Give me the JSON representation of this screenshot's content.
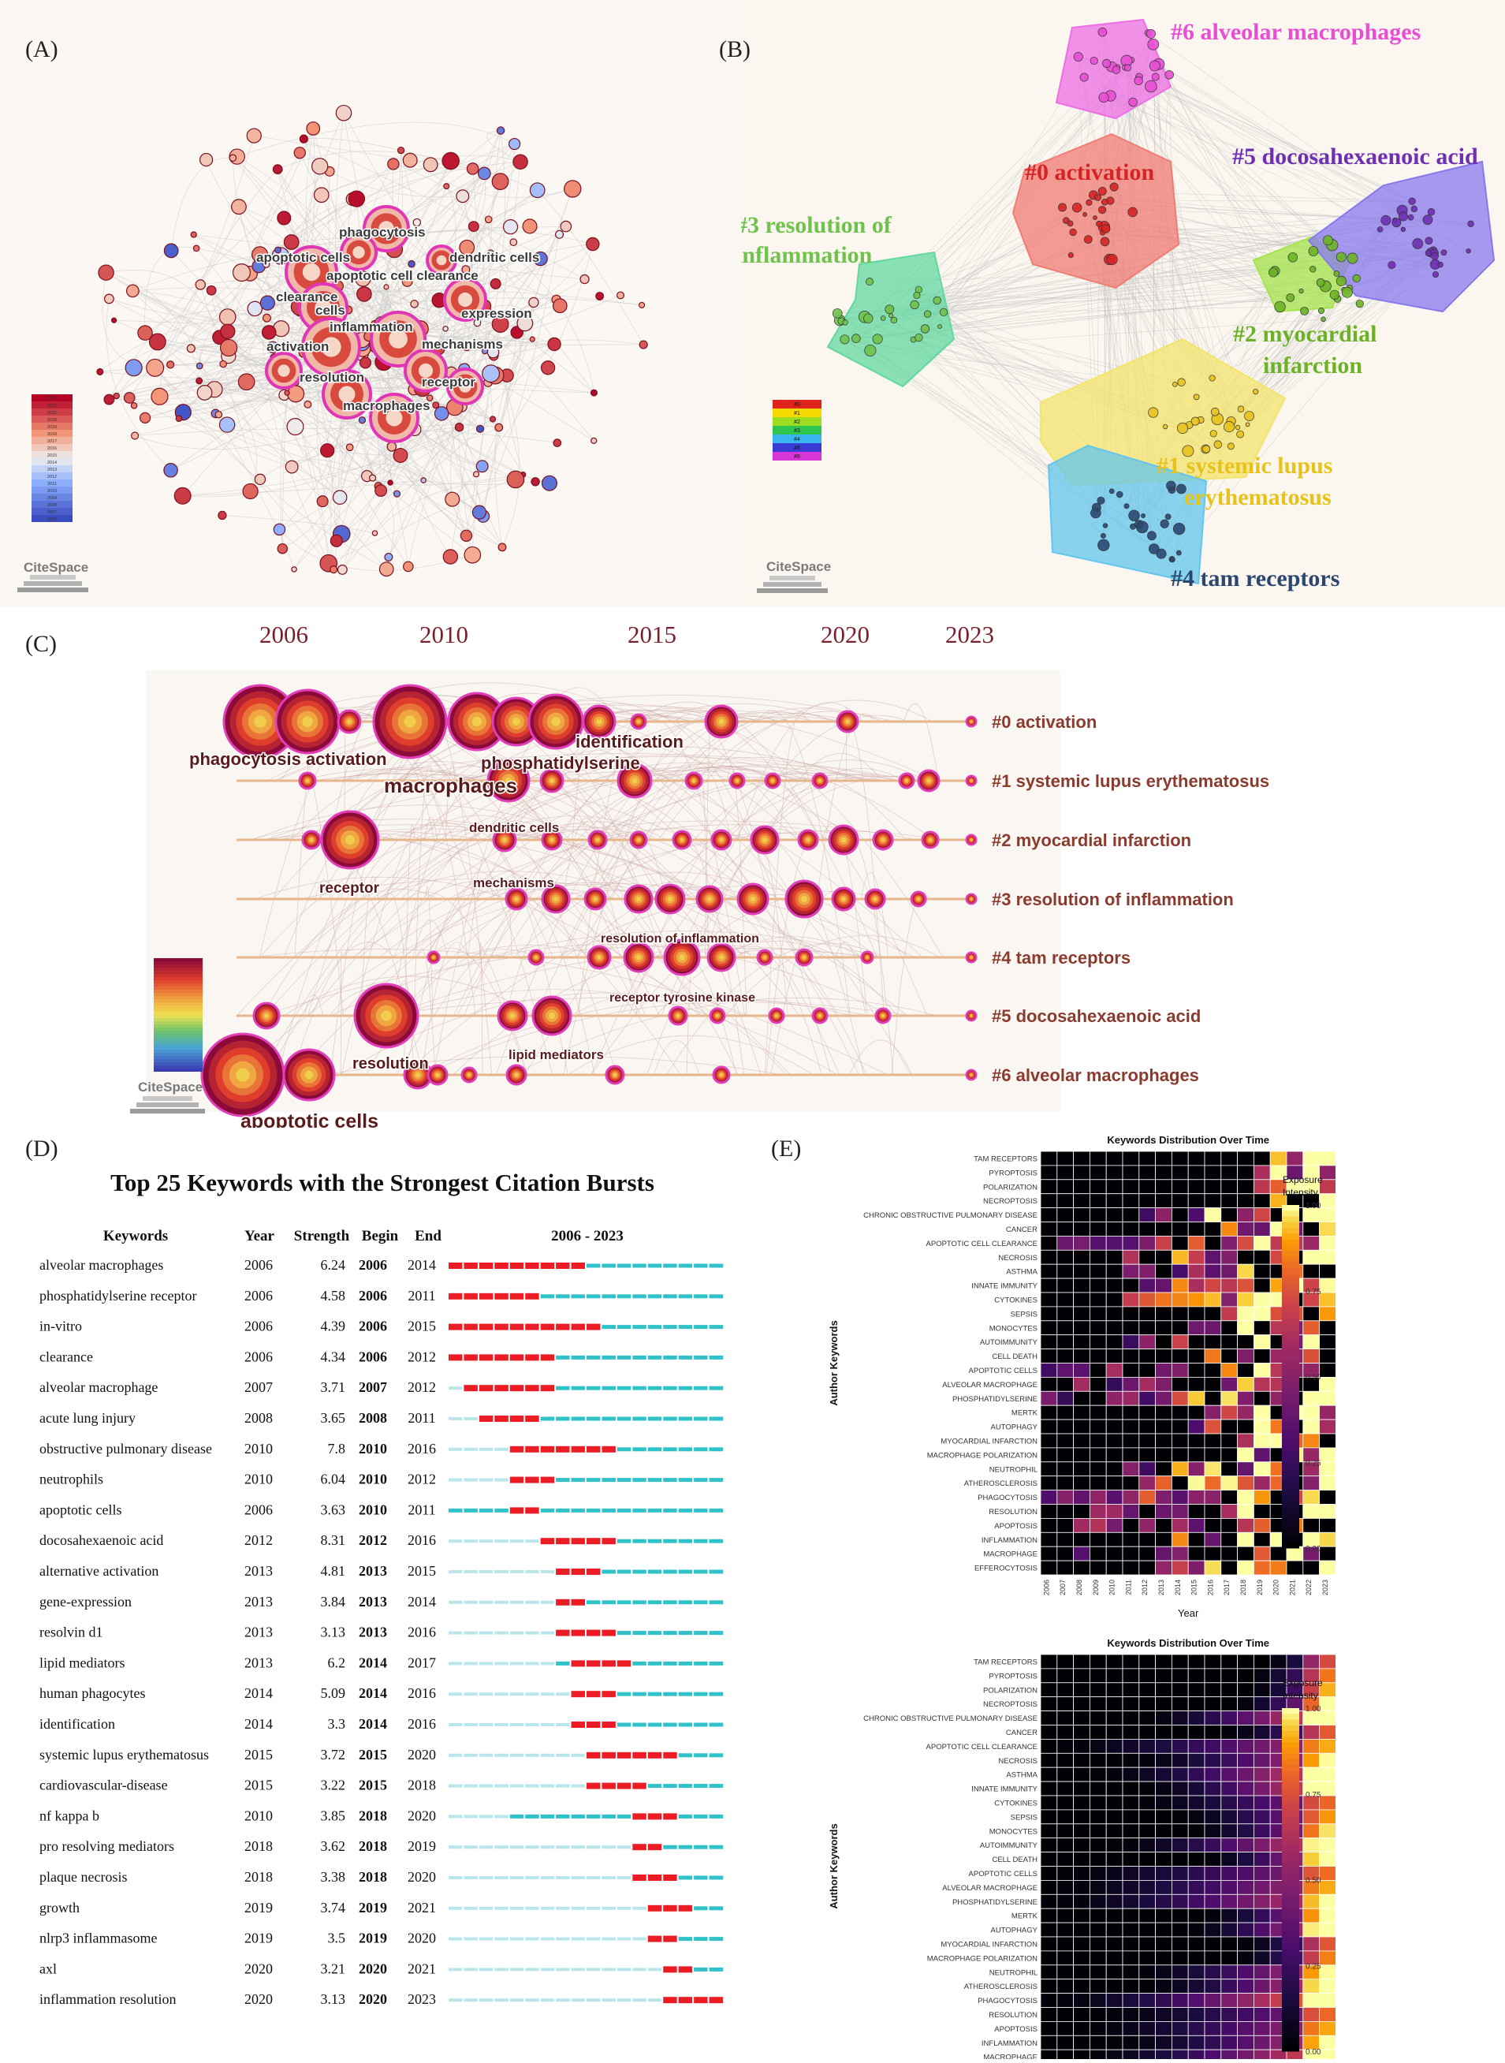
{
  "panel_labels": {
    "A": "(A)",
    "B": "(B)",
    "C": "(C)",
    "D": "(D)",
    "E": "(E)"
  },
  "logo_text": "CiteSpace",
  "chart_data": [
    {
      "id": "A",
      "type": "network",
      "node_labels": [
        "phagocytosis",
        "apoptotic cells",
        "dendritic cells",
        "apoptotic cell clearance",
        "clearance cells",
        "inflammation",
        "expression",
        "activation",
        "mechanisms",
        "resolution",
        "receptor",
        "macrophages"
      ],
      "legend_years": [
        "2023",
        "2022",
        "2021",
        "2020",
        "2019",
        "2018",
        "2017",
        "2016",
        "2015",
        "2014",
        "2013",
        "2012",
        "2011",
        "2010",
        "2009",
        "2008",
        "2007",
        "2006"
      ]
    },
    {
      "id": "B",
      "type": "cluster-network",
      "clusters": [
        {
          "id": "#0",
          "label": "#0 activation",
          "color": "#d62424"
        },
        {
          "id": "#1",
          "label": "#1 systemic lupus erythematosus",
          "color": "#e8c21c"
        },
        {
          "id": "#2",
          "label": "#2 myocardial infarction",
          "color": "#6cb226"
        },
        {
          "id": "#3",
          "label": "#3 resolution of inflammation",
          "color": "#6fc24b"
        },
        {
          "id": "#4",
          "label": "#4 tam receptors",
          "color": "#2b4770"
        },
        {
          "id": "#5",
          "label": "#5 docosahexaenoic acid",
          "color": "#6e2fb3"
        },
        {
          "id": "#6",
          "label": "#6 alveolar macrophages",
          "color": "#e84ed3"
        }
      ],
      "legend_entries": [
        "#0",
        "#1",
        "#2",
        "#3",
        "#4",
        "#5",
        "#6"
      ]
    },
    {
      "id": "C",
      "type": "timeline",
      "years": [
        "2006",
        "2010",
        "2015",
        "2020",
        "2023"
      ],
      "lanes": [
        "#0 activation",
        "#1 systemic lupus erythematosus",
        "#2 myocardial infarction",
        "#3 resolution of inflammation",
        "#4 tam receptors",
        "#5 docosahexaenoic acid",
        "#6 alveolar macrophages"
      ],
      "node_labels": [
        "phagocytosis activation",
        "phosphatidylserine",
        "identification",
        "macrophages",
        "dendritic cells",
        "receptor",
        "mechanisms",
        "resolution of inflammation",
        "receptor tyrosine kinase",
        "resolution",
        "lipid mediators",
        "apoptotic cells"
      ]
    },
    {
      "id": "D",
      "type": "table",
      "title": "Top 25 Keywords with the Strongest Citation Bursts",
      "columns": [
        "Keywords",
        "Year",
        "Strength",
        "Begin",
        "End",
        "2006 - 2023"
      ],
      "range_start": 2006,
      "range_end": 2023,
      "rows": [
        {
          "keyword": "alveolar macrophages",
          "year": "2006",
          "strength": "6.24",
          "begin": "2006",
          "end": "2014"
        },
        {
          "keyword": "phosphatidylserine receptor",
          "year": "2006",
          "strength": "4.58",
          "begin": "2006",
          "end": "2011"
        },
        {
          "keyword": "in-vitro",
          "year": "2006",
          "strength": "4.39",
          "begin": "2006",
          "end": "2015"
        },
        {
          "keyword": "clearance",
          "year": "2006",
          "strength": "4.34",
          "begin": "2006",
          "end": "2012"
        },
        {
          "keyword": "alveolar macrophage",
          "year": "2007",
          "strength": "3.71",
          "begin": "2007",
          "end": "2012"
        },
        {
          "keyword": "acute lung injury",
          "year": "2008",
          "strength": "3.65",
          "begin": "2008",
          "end": "2011"
        },
        {
          "keyword": "obstructive pulmonary disease",
          "year": "2010",
          "strength": "7.8",
          "begin": "2010",
          "end": "2016"
        },
        {
          "keyword": "neutrophils",
          "year": "2010",
          "strength": "6.04",
          "begin": "2010",
          "end": "2012"
        },
        {
          "keyword": "apoptotic cells",
          "year": "2006",
          "strength": "3.63",
          "begin": "2010",
          "end": "2011"
        },
        {
          "keyword": "docosahexaenoic acid",
          "year": "2012",
          "strength": "8.31",
          "begin": "2012",
          "end": "2016"
        },
        {
          "keyword": "alternative activation",
          "year": "2013",
          "strength": "4.81",
          "begin": "2013",
          "end": "2015"
        },
        {
          "keyword": "gene-expression",
          "year": "2013",
          "strength": "3.84",
          "begin": "2013",
          "end": "2014"
        },
        {
          "keyword": "resolvin d1",
          "year": "2013",
          "strength": "3.13",
          "begin": "2013",
          "end": "2016"
        },
        {
          "keyword": "lipid mediators",
          "year": "2013",
          "strength": "6.2",
          "begin": "2014",
          "end": "2017"
        },
        {
          "keyword": "human phagocytes",
          "year": "2014",
          "strength": "5.09",
          "begin": "2014",
          "end": "2016"
        },
        {
          "keyword": "identification",
          "year": "2014",
          "strength": "3.3",
          "begin": "2014",
          "end": "2016"
        },
        {
          "keyword": "systemic lupus erythematosus",
          "year": "2015",
          "strength": "3.72",
          "begin": "2015",
          "end": "2020"
        },
        {
          "keyword": "cardiovascular-disease",
          "year": "2015",
          "strength": "3.22",
          "begin": "2015",
          "end": "2018"
        },
        {
          "keyword": "nf kappa b",
          "year": "2010",
          "strength": "3.85",
          "begin": "2018",
          "end": "2020"
        },
        {
          "keyword": "pro resolving mediators",
          "year": "2018",
          "strength": "3.62",
          "begin": "2018",
          "end": "2019"
        },
        {
          "keyword": "plaque necrosis",
          "year": "2018",
          "strength": "3.38",
          "begin": "2018",
          "end": "2020"
        },
        {
          "keyword": "growth",
          "year": "2019",
          "strength": "3.74",
          "begin": "2019",
          "end": "2021"
        },
        {
          "keyword": "nlrp3 inflammasome",
          "year": "2019",
          "strength": "3.5",
          "begin": "2019",
          "end": "2020"
        },
        {
          "keyword": "axl",
          "year": "2020",
          "strength": "3.21",
          "begin": "2020",
          "end": "2021"
        },
        {
          "keyword": "inflammation resolution",
          "year": "2020",
          "strength": "3.13",
          "begin": "2020",
          "end": "2023"
        }
      ]
    },
    {
      "id": "E",
      "type": "heatmap",
      "title": "Keywords Distribution Over Time",
      "xlabel": "Year",
      "ylabel": "Author Keywords",
      "legend_title": [
        "Exposure",
        "Intensity"
      ],
      "legend_ticks": [
        "1.00",
        "0.75",
        "0.50",
        "0.25",
        "0.00"
      ],
      "years": [
        "2006",
        "2007",
        "2008",
        "2009",
        "2010",
        "2011",
        "2012",
        "2013",
        "2014",
        "2015",
        "2016",
        "2017",
        "2018",
        "2019",
        "2020",
        "2021",
        "2022",
        "2023"
      ],
      "keywords": [
        "TAM RECEPTORS",
        "PYROPTOSIS",
        "POLARIZATION",
        "NECROPTOSIS",
        "CHRONIC OBSTRUCTIVE PULMONARY DISEASE",
        "CANCER",
        "APOPTOTIC CELL CLEARANCE",
        "NECROSIS",
        "ASTHMA",
        "INNATE IMMUNITY",
        "CYTOKINES",
        "SEPSIS",
        "MONOCYTES",
        "AUTOIMMUNITY",
        "CELL DEATH",
        "APOPTOTIC CELLS",
        "ALVEOLAR MACROPHAGE",
        "PHOSPHATIDYLSERINE",
        "MERTK",
        "AUTOPHAGY",
        "MYOCARDIAL INFARCTION",
        "MACROPHAGE POLARIZATION",
        "NEUTROPHIL",
        "ATHEROSCLEROSIS",
        "PHAGOCYTOSIS",
        "RESOLUTION",
        "APOPTOSIS",
        "INFLAMMATION",
        "MACROPHAGE",
        "EFFEROCYTOSIS"
      ],
      "first_year_index": [
        14,
        13,
        13,
        12,
        6,
        11,
        0,
        5,
        3,
        6,
        5,
        8,
        9,
        4,
        10,
        0,
        0,
        0,
        10,
        9,
        12,
        12,
        5,
        6,
        0,
        3,
        2,
        4,
        2,
        6
      ],
      "note": "two heatmaps: top = yearly exposure, bottom = cumulative exposure"
    }
  ]
}
